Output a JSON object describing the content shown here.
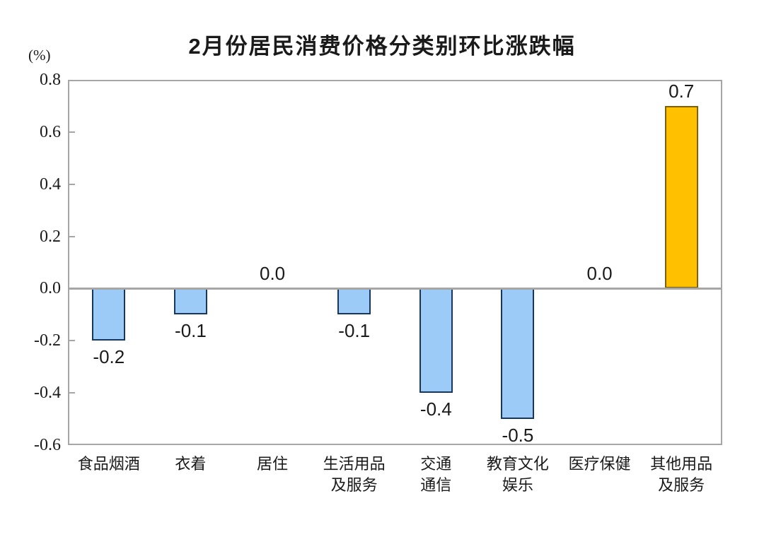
{
  "chart_data": {
    "type": "bar",
    "title": "2月份居民消费价格分类别环比涨跌幅",
    "unit_label": "(%)",
    "xlabel": "",
    "ylabel": "(%)",
    "categories": [
      "食品烟酒",
      "衣着",
      "居住",
      "生活用品及服务",
      "交通通信",
      "教育文化娱乐",
      "医疗保健",
      "其他用品及服务"
    ],
    "category_lines": [
      [
        "食品烟酒"
      ],
      [
        "衣着"
      ],
      [
        "居住"
      ],
      [
        "生活用品",
        "及服务"
      ],
      [
        "交通",
        "通信"
      ],
      [
        "教育文化",
        "娱乐"
      ],
      [
        "医疗保健"
      ],
      [
        "其他用品",
        "及服务"
      ]
    ],
    "values": [
      -0.2,
      -0.1,
      0.0,
      -0.1,
      -0.4,
      -0.5,
      0.0,
      0.7
    ],
    "value_labels": [
      "-0.2",
      "-0.1",
      "0.0",
      "-0.1",
      "-0.4",
      "-0.5",
      "0.0",
      "0.7"
    ],
    "ylim": [
      -0.6,
      0.8
    ],
    "yticks": [
      0.8,
      0.6,
      0.4,
      0.2,
      0.0,
      -0.2,
      -0.4,
      -0.6
    ],
    "ytick_labels": [
      "0.8",
      "0.6",
      "0.4",
      "0.2",
      "0.0",
      "-0.2",
      "-0.4",
      "-0.6"
    ],
    "grid": false,
    "legend": "none",
    "colors": {
      "bar_default_fill": "#9CCBF7",
      "bar_default_border": "#17375E",
      "bar_highlight_fill": "#FFC000",
      "bar_highlight_border": "#7F6000",
      "axis_line": "#A6A6A6",
      "text": "#1A1A1A"
    },
    "bar_fills": [
      "#9CCBF7",
      "#9CCBF7",
      "#9CCBF7",
      "#9CCBF7",
      "#9CCBF7",
      "#9CCBF7",
      "#9CCBF7",
      "#FFC000"
    ],
    "bar_borders": [
      "#17375E",
      "#17375E",
      "#17375E",
      "#17375E",
      "#17375E",
      "#17375E",
      "#17375E",
      "#7F6000"
    ]
  }
}
